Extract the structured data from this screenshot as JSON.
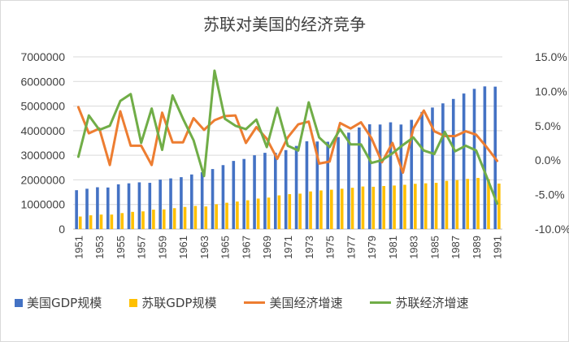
{
  "chart_data": {
    "type": "bar+line",
    "title": "苏联对美国的经济竞争",
    "categories": [
      1951,
      1952,
      1953,
      1954,
      1955,
      1956,
      1957,
      1958,
      1959,
      1960,
      1961,
      1962,
      1963,
      1964,
      1965,
      1966,
      1967,
      1968,
      1969,
      1970,
      1971,
      1972,
      1973,
      1974,
      1975,
      1976,
      1977,
      1978,
      1979,
      1980,
      1981,
      1982,
      1983,
      1984,
      1985,
      1986,
      1987,
      1988,
      1989,
      1990,
      1991
    ],
    "x_tick_labels": [
      "1951",
      "1953",
      "1955",
      "1957",
      "1959",
      "1961",
      "1963",
      "1965",
      "1967",
      "1969",
      "1971",
      "1973",
      "1975",
      "1977",
      "1979",
      "1981",
      "1983",
      "1985",
      "1987",
      "1989",
      "1991"
    ],
    "y_left": {
      "min": 0,
      "max": 7000000,
      "ticks": [
        "0",
        "1000000",
        "2000000",
        "3000000",
        "4000000",
        "5000000",
        "6000000",
        "7000000"
      ]
    },
    "y_right": {
      "min": -10,
      "max": 15,
      "ticks": [
        "-10.0%",
        "-5.0%",
        "0.0%",
        "5.0%",
        "10.0%",
        "15.0%"
      ]
    },
    "series": [
      {
        "name": "美国GDP规模",
        "kind": "bar",
        "axis": "left",
        "color": "#4472c4",
        "values": [
          1580000,
          1640000,
          1700000,
          1690000,
          1820000,
          1860000,
          1900000,
          1880000,
          2010000,
          2060000,
          2110000,
          2220000,
          2310000,
          2440000,
          2600000,
          2770000,
          2850000,
          3000000,
          3100000,
          3100000,
          3210000,
          3380000,
          3570000,
          3560000,
          3550000,
          3740000,
          3920000,
          4130000,
          4260000,
          4250000,
          4340000,
          4250000,
          4440000,
          4760000,
          4940000,
          5110000,
          5290000,
          5510000,
          5700000,
          5800000,
          5790000
        ]
      },
      {
        "name": "苏联GDP规模",
        "kind": "bar",
        "axis": "left",
        "color": "#ffc000",
        "values": [
          510000,
          560000,
          590000,
          590000,
          650000,
          700000,
          720000,
          790000,
          800000,
          850000,
          900000,
          940000,
          920000,
          1010000,
          1070000,
          1120000,
          1170000,
          1240000,
          1280000,
          1370000,
          1420000,
          1440000,
          1530000,
          1570000,
          1600000,
          1640000,
          1680000,
          1730000,
          1720000,
          1750000,
          1770000,
          1800000,
          1840000,
          1860000,
          1880000,
          1960000,
          1990000,
          2040000,
          2080000,
          2030000,
          1850000
        ]
      },
      {
        "name": "美国经济增速",
        "kind": "line",
        "axis": "right",
        "color": "#ed7d31",
        "values": [
          7.7,
          3.9,
          4.6,
          -0.7,
          7.1,
          2.1,
          2.1,
          -0.7,
          6.9,
          2.6,
          2.6,
          6.1,
          4.4,
          5.8,
          6.4,
          6.5,
          2.5,
          4.8,
          3.1,
          0.2,
          3.3,
          5.2,
          5.6,
          -0.5,
          -0.2,
          5.4,
          4.6,
          5.5,
          3.2,
          -0.3,
          2.5,
          -1.8,
          4.6,
          7.2,
          4.2,
          3.5,
          3.5,
          4.2,
          3.7,
          1.9,
          -0.1
        ]
      },
      {
        "name": "苏联经济增速",
        "kind": "line",
        "axis": "right",
        "color": "#70ad47",
        "values": [
          0.5,
          6.5,
          4.4,
          5.0,
          8.6,
          9.6,
          2.5,
          7.5,
          1.5,
          9.4,
          6.0,
          2.9,
          -2.3,
          13.0,
          6.0,
          5.0,
          4.5,
          5.9,
          1.9,
          7.6,
          2.1,
          1.4,
          8.4,
          3.3,
          1.9,
          4.5,
          2.3,
          2.3,
          -0.4,
          0.0,
          1.0,
          2.2,
          3.3,
          1.4,
          0.9,
          4.1,
          1.3,
          2.1,
          1.4,
          -2.4,
          -6.3
        ]
      }
    ]
  }
}
